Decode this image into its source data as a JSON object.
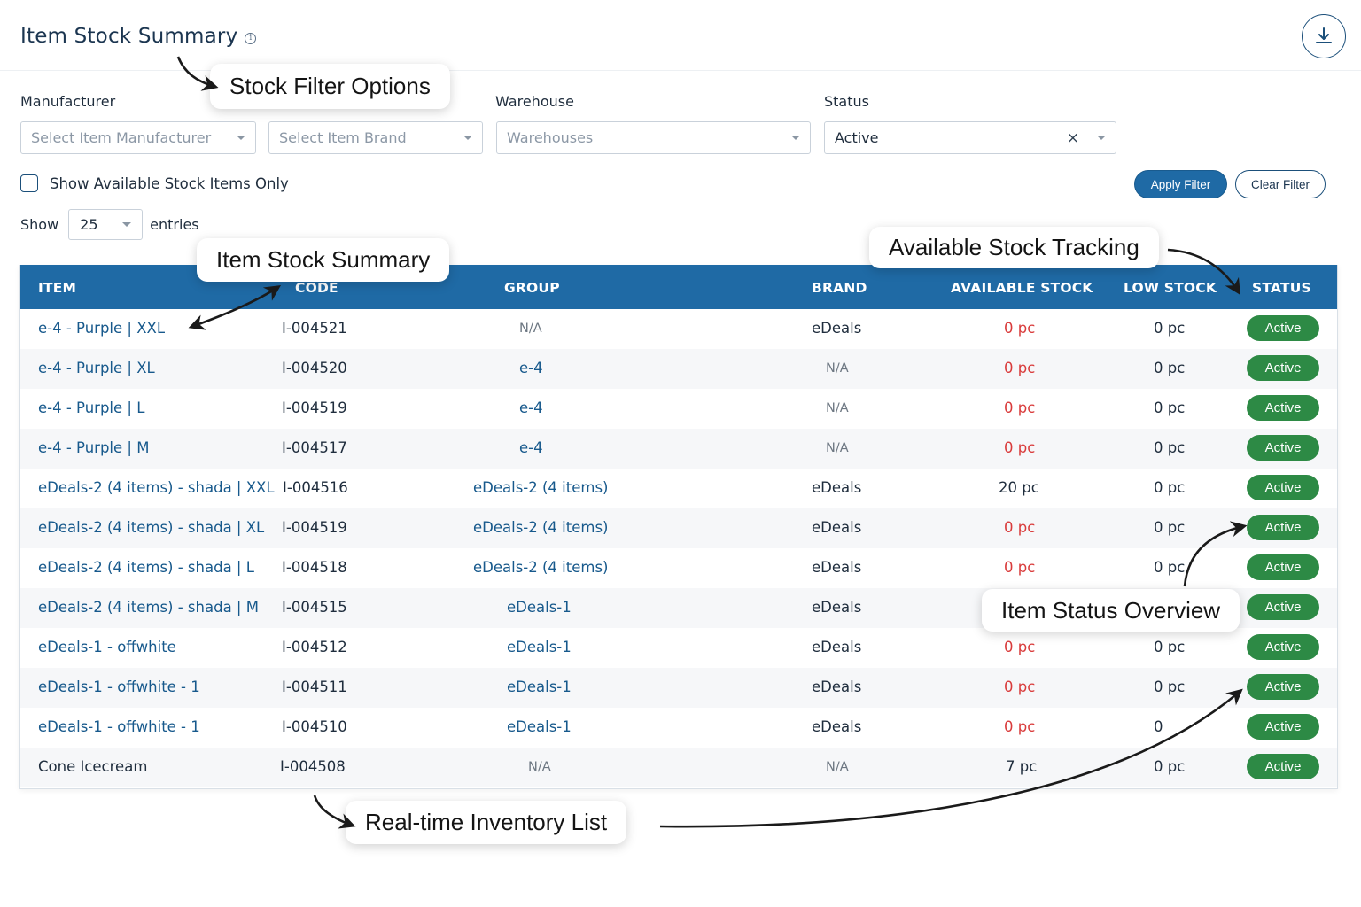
{
  "header": {
    "title": "Item Stock Summary",
    "info_icon": "info-icon",
    "download_icon": "download-icon"
  },
  "filters": {
    "manufacturer_label": "Manufacturer",
    "manufacturer_placeholder": "Select Item Manufacturer",
    "brand_placeholder": "Select Item Brand",
    "warehouse_label": "Warehouse",
    "warehouse_placeholder": "Warehouses",
    "status_label": "Status",
    "status_value": "Active",
    "status_clear": "×",
    "available_only_label": "Show Available Stock Items Only",
    "apply_label": "Apply Filter",
    "clear_label": "Clear Filter"
  },
  "entries": {
    "show_label": "Show",
    "value": "25",
    "suffix": "entries"
  },
  "table": {
    "columns": [
      "ITEM",
      "CODE",
      "GROUP",
      "BRAND",
      "AVAILABLE STOCK",
      "LOW STOCK",
      "STATUS"
    ],
    "rows": [
      {
        "item": "e-4 - Purple | XXL",
        "code": "I-004521",
        "group": "N/A",
        "brand": "eDeals",
        "available": "0 pc",
        "low": "0 pc",
        "status": "Active"
      },
      {
        "item": "e-4 - Purple | XL",
        "code": "I-004520",
        "group": "e-4",
        "brand": "N/A",
        "available": "0 pc",
        "low": "0 pc",
        "status": "Active"
      },
      {
        "item": "e-4 - Purple | L",
        "code": "I-004519",
        "group": "e-4",
        "brand": "N/A",
        "available": "0 pc",
        "low": "0 pc",
        "status": "Active"
      },
      {
        "item": "e-4 - Purple | M",
        "code": "I-004517",
        "group": "e-4",
        "brand": "N/A",
        "available": "0 pc",
        "low": "0 pc",
        "status": "Active"
      },
      {
        "item": "eDeals-2 (4 items) - shada | XXL",
        "code": "I-004516",
        "group": "eDeals-2 (4 items)",
        "brand": "eDeals",
        "available": "20 pc",
        "low": "0 pc",
        "status": "Active"
      },
      {
        "item": "eDeals-2 (4 items) - shada | XL",
        "code": "I-004519",
        "group": "eDeals-2 (4 items)",
        "brand": "eDeals",
        "available": "0 pc",
        "low": "0 pc",
        "status": "Active"
      },
      {
        "item": "eDeals-2 (4 items) - shada | L",
        "code": "I-004518",
        "group": "eDeals-2 (4 items)",
        "brand": "eDeals",
        "available": "0 pc",
        "low": "0 pc",
        "status": "Active"
      },
      {
        "item": "eDeals-2 (4 items) - shada | M",
        "code": "I-004515",
        "group": "eDeals-1",
        "brand": "eDeals",
        "available": "",
        "low": "",
        "status": "Active"
      },
      {
        "item": "eDeals-1 - offwhite",
        "code": "I-004512",
        "group": "eDeals-1",
        "brand": "eDeals",
        "available": "0 pc",
        "low": "0 pc",
        "status": "Active"
      },
      {
        "item": "eDeals-1 - offwhite - 1",
        "code": "I-004511",
        "group": "eDeals-1",
        "brand": "eDeals",
        "available": "0 pc",
        "low": "0 pc",
        "status": "Active"
      },
      {
        "item": "eDeals-1 - offwhite - 1",
        "code": "I-004510",
        "group": "eDeals-1",
        "brand": "eDeals",
        "available": "0 pc",
        "low": "0",
        "status": "Active"
      },
      {
        "item": "Cone Icecream",
        "code": "I-004508",
        "group": "N/A",
        "brand": "N/A",
        "available": "7 pc",
        "low": "0 pc",
        "status": "Active"
      }
    ]
  },
  "callouts": {
    "stock_filter": "Stock Filter Options",
    "item_summary": "Item Stock Summary",
    "available_tracking": "Available Stock Tracking",
    "status_overview": "Item Status Overview",
    "inventory_list": "Real-time Inventory List"
  },
  "colors": {
    "header_bg": "#1f6aa5",
    "link": "#17598c",
    "zero_stock": "#d93b3b",
    "active_badge": "#2d8a45"
  }
}
